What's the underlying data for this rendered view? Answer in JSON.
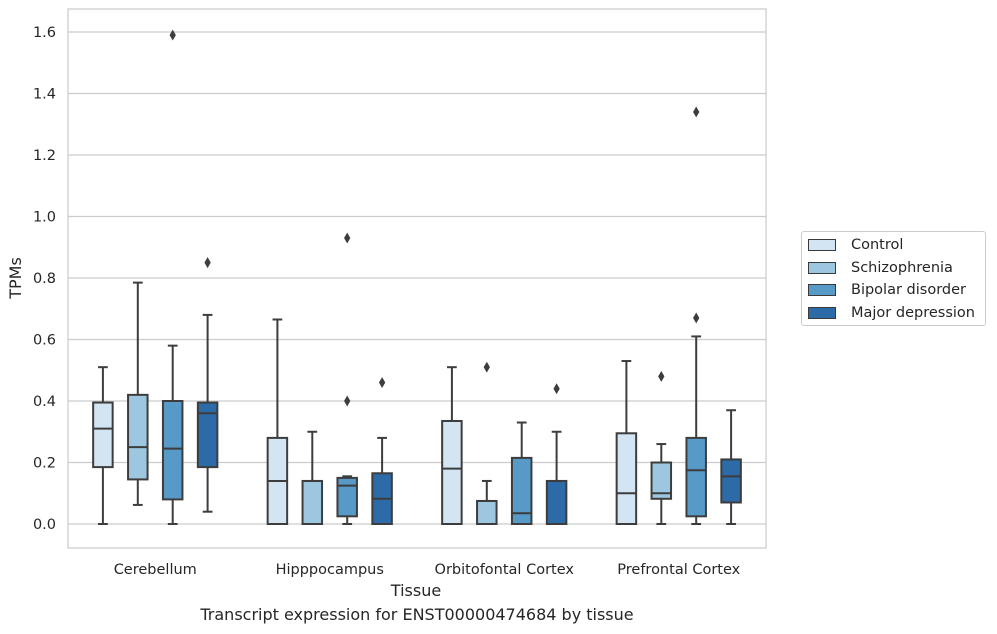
{
  "chart_data": {
    "type": "box",
    "title": "",
    "xlabel": "Tissue",
    "ylabel": "TPMs",
    "ylim": [
      -0.08,
      1.67
    ],
    "yticks": [
      "0.0",
      "0.2",
      "0.4",
      "0.6",
      "0.8",
      "1.0",
      "1.2",
      "1.4",
      "1.6"
    ],
    "categories": [
      "Cerebellum",
      "Hipppocampus",
      "Orbitofontal Cortex",
      "Prefrontal Cortex"
    ],
    "grid": "horizontal",
    "legend_position": "right",
    "series": [
      {
        "name": "Control",
        "color": "#d3e4f3",
        "boxes": [
          {
            "q1": 0.185,
            "median": 0.31,
            "q3": 0.395,
            "whisker_low": 0.0,
            "whisker_high": 0.51,
            "outliers": []
          },
          {
            "q1": 0.0,
            "median": 0.14,
            "q3": 0.28,
            "whisker_low": 0.0,
            "whisker_high": 0.665,
            "outliers": []
          },
          {
            "q1": 0.0,
            "median": 0.18,
            "q3": 0.335,
            "whisker_low": 0.0,
            "whisker_high": 0.51,
            "outliers": []
          },
          {
            "q1": 0.0,
            "median": 0.1,
            "q3": 0.295,
            "whisker_low": 0.0,
            "whisker_high": 0.53,
            "outliers": []
          }
        ]
      },
      {
        "name": "Schizophrenia",
        "color": "#9dc7e0",
        "boxes": [
          {
            "q1": 0.145,
            "median": 0.25,
            "q3": 0.42,
            "whisker_low": 0.062,
            "whisker_high": 0.785,
            "outliers": []
          },
          {
            "q1": 0.0,
            "median": 0.14,
            "q3": 0.14,
            "whisker_low": 0.0,
            "whisker_high": 0.3,
            "outliers": []
          },
          {
            "q1": 0.0,
            "median": 0.075,
            "q3": 0.075,
            "whisker_low": 0.0,
            "whisker_high": 0.14,
            "outliers": [
              0.51
            ]
          },
          {
            "q1": 0.082,
            "median": 0.1,
            "q3": 0.2,
            "whisker_low": 0.0,
            "whisker_high": 0.26,
            "outliers": [
              0.48
            ]
          }
        ]
      },
      {
        "name": "Bipolar disorder",
        "color": "#5799c7",
        "boxes": [
          {
            "q1": 0.08,
            "median": 0.245,
            "q3": 0.4,
            "whisker_low": 0.0,
            "whisker_high": 0.58,
            "outliers": [
              1.59
            ]
          },
          {
            "q1": 0.025,
            "median": 0.125,
            "q3": 0.15,
            "whisker_low": 0.0,
            "whisker_high": 0.155,
            "outliers": [
              0.93,
              0.4
            ]
          },
          {
            "q1": 0.0,
            "median": 0.035,
            "q3": 0.215,
            "whisker_low": 0.0,
            "whisker_high": 0.33,
            "outliers": []
          },
          {
            "q1": 0.025,
            "median": 0.175,
            "q3": 0.28,
            "whisker_low": 0.0,
            "whisker_high": 0.61,
            "outliers": [
              1.34,
              0.67
            ]
          }
        ]
      },
      {
        "name": "Major depression",
        "color": "#2c6aa8",
        "boxes": [
          {
            "q1": 0.185,
            "median": 0.36,
            "q3": 0.395,
            "whisker_low": 0.04,
            "whisker_high": 0.68,
            "outliers": [
              0.85
            ]
          },
          {
            "q1": 0.0,
            "median": 0.082,
            "q3": 0.165,
            "whisker_low": 0.0,
            "whisker_high": 0.28,
            "outliers": [
              0.46
            ]
          },
          {
            "q1": 0.0,
            "median": 0.14,
            "q3": 0.14,
            "whisker_low": 0.0,
            "whisker_high": 0.3,
            "outliers": [
              0.44
            ]
          },
          {
            "q1": 0.07,
            "median": 0.155,
            "q3": 0.21,
            "whisker_low": 0.0,
            "whisker_high": 0.37,
            "outliers": []
          }
        ]
      }
    ]
  },
  "caption": "Transcript expression for ENST00000474684 by tissue"
}
